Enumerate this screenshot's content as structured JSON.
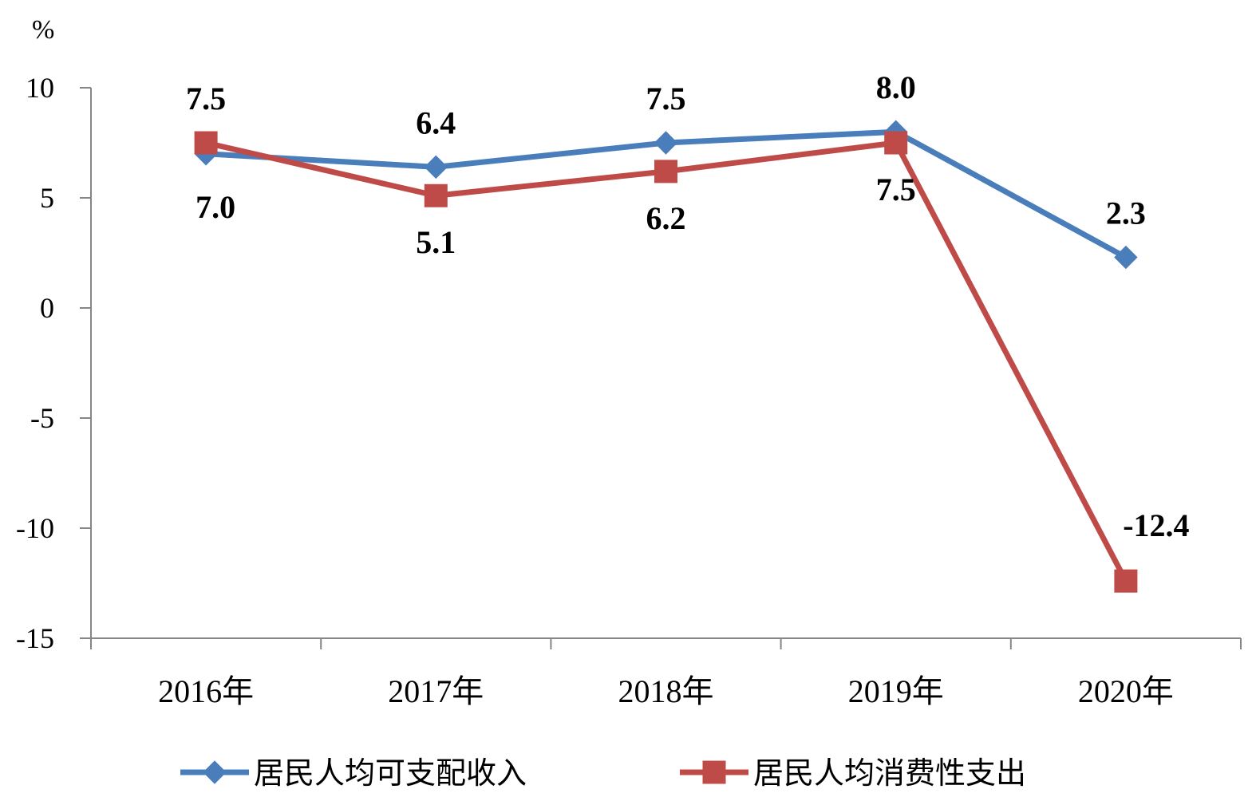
{
  "chart_data": {
    "type": "line",
    "title": "",
    "xlabel": "",
    "ylabel": "",
    "y_unit": "%",
    "categories": [
      "2016年",
      "2017年",
      "2018年",
      "2019年",
      "2020年"
    ],
    "ylim": [
      -15,
      10
    ],
    "yticks": [
      10,
      5,
      0,
      -5,
      -10,
      -15
    ],
    "ytick_labels": [
      "10",
      "5",
      "0",
      "-5",
      "-10",
      "-15"
    ],
    "grid": false,
    "legend_position": "bottom",
    "series": [
      {
        "name": "居民人均可支配收入",
        "values": [
          7.0,
          6.4,
          7.5,
          8.0,
          2.3
        ],
        "labels": [
          "7.0",
          "6.4",
          "7.5",
          "8.0",
          "2.3"
        ],
        "color": "#4a7ebb",
        "marker": "diamond"
      },
      {
        "name": "居民人均消费性支出",
        "values": [
          7.5,
          5.1,
          6.2,
          7.5,
          -12.4
        ],
        "labels": [
          "7.5",
          "5.1",
          "6.2",
          "7.5",
          "-12.4"
        ],
        "color": "#be4b48",
        "marker": "square"
      }
    ]
  }
}
